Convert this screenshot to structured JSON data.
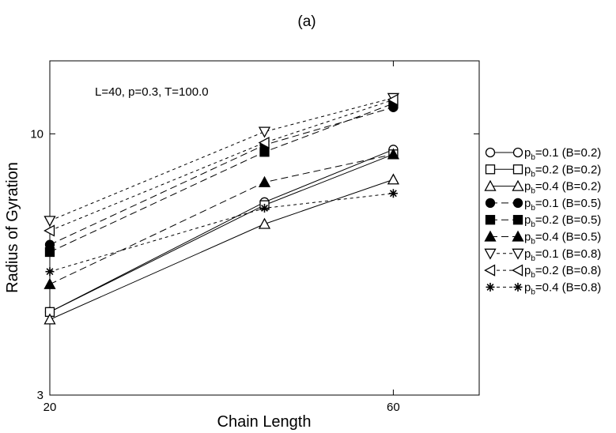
{
  "chart_data": {
    "type": "line",
    "panel_label": "(a)",
    "annotation": "L=40, p=0.3, T=100.0",
    "xlabel": "Chain Length",
    "ylabel": "Radius of Gyration",
    "xlim": [
      20,
      70
    ],
    "ylim": [
      3,
      14
    ],
    "y_scale": "log",
    "x_ticks": [
      {
        "value": 20,
        "label": "20"
      },
      {
        "value": 60,
        "label": "60"
      }
    ],
    "y_ticks": [
      {
        "value": 3,
        "label": "3"
      },
      {
        "value": 10,
        "label": "10"
      }
    ],
    "grid": false,
    "legend_position": "right, outside plot",
    "x": [
      20,
      45,
      60
    ],
    "series": [
      {
        "name": "p_b=0.1 (B=0.2)",
        "p": "0.1",
        "B": "0.2",
        "values": [
          4.4,
          7.3,
          9.3
        ],
        "marker": "circle-open",
        "dash": "solid"
      },
      {
        "name": "p_b=0.2 (B=0.2)",
        "p": "0.2",
        "B": "0.2",
        "values": [
          4.4,
          7.2,
          9.1
        ],
        "marker": "square-open",
        "dash": "solid"
      },
      {
        "name": "p_b=0.4 (B=0.2)",
        "p": "0.4",
        "B": "0.2",
        "values": [
          4.25,
          6.6,
          8.1
        ],
        "marker": "triangle-up-open",
        "dash": "solid"
      },
      {
        "name": "p_b=0.1 (B=0.5)",
        "p": "0.1",
        "B": "0.5",
        "values": [
          6.0,
          9.5,
          11.3
        ],
        "marker": "circle-filled",
        "dash": "dash"
      },
      {
        "name": "p_b=0.2 (B=0.5)",
        "p": "0.2",
        "B": "0.5",
        "values": [
          5.8,
          9.2,
          11.5
        ],
        "marker": "square-filled",
        "dash": "dash"
      },
      {
        "name": "p_b=0.4 (B=0.5)",
        "p": "0.4",
        "B": "0.5",
        "values": [
          5.0,
          8.0,
          9.1
        ],
        "marker": "triangle-up-filled",
        "dash": "dash"
      },
      {
        "name": "p_b=0.1 (B=0.8)",
        "p": "0.1",
        "B": "0.8",
        "values": [
          6.7,
          10.1,
          11.8
        ],
        "marker": "triangle-down-open",
        "dash": "shortdash"
      },
      {
        "name": "p_b=0.2 (B=0.8)",
        "p": "0.2",
        "B": "0.8",
        "values": [
          6.4,
          9.6,
          11.7
        ],
        "marker": "triangle-left-open",
        "dash": "shortdash"
      },
      {
        "name": "p_b=0.4 (B=0.8)",
        "p": "0.4",
        "B": "0.8",
        "values": [
          5.3,
          7.1,
          7.6
        ],
        "marker": "asterisk",
        "dash": "shortdash"
      }
    ]
  }
}
